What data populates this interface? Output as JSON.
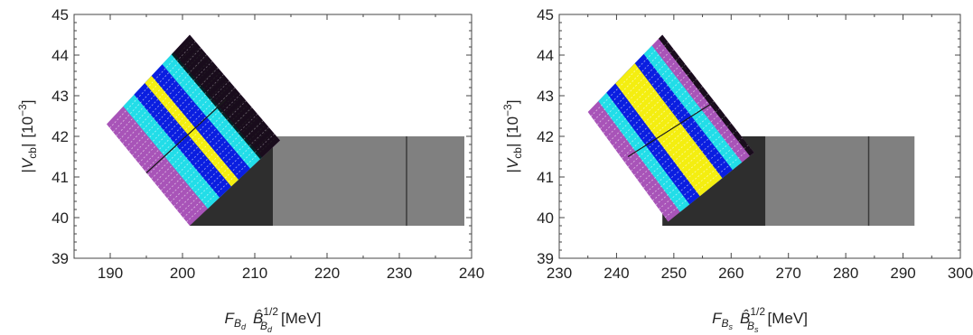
{
  "chart_data": [
    {
      "type": "scatter",
      "panel": "left",
      "title": "",
      "xlabel": {
        "main": "F",
        "sub1": "B",
        "sub2": "d",
        "hat": "B̂",
        "hsub1": "B",
        "hsub2": "d",
        "power": "1/2",
        "unit": "[MeV]"
      },
      "ylabel": {
        "bar_open": "|",
        "main": "V",
        "sub": "cb",
        "bar_close": "|",
        "unit": "[10",
        "unit_exp": "−3",
        "unit_close": "]"
      },
      "xlim": [
        185,
        240
      ],
      "ylim": [
        39,
        45
      ],
      "xticks": [
        "190",
        "200",
        "210",
        "220",
        "230",
        "240"
      ],
      "yticks": [
        "39",
        "40",
        "41",
        "42",
        "43",
        "44",
        "45"
      ],
      "grid": false,
      "legend": "none",
      "colors": {
        "outer": "#a854b8",
        "band2": "#22dde8",
        "band1": "#0a1ee0",
        "core": "#f4ee10",
        "edge": "#000000",
        "dark_box": "#2e2e2e",
        "light_box": "#808080",
        "divider": "#3a3a3a"
      },
      "boxes": [
        {
          "name": "dark-region",
          "x": [
            201,
            212.5
          ],
          "y": [
            39.8,
            42
          ]
        },
        {
          "name": "light-region",
          "x": [
            212.5,
            239
          ],
          "y": [
            39.8,
            42
          ]
        }
      ],
      "divider_x": 231,
      "rotated_band": {
        "corners": [
          [
            189.5,
            42.3
          ],
          [
            201,
            44.5
          ],
          [
            213.5,
            41.9
          ],
          [
            201,
            39.8
          ]
        ],
        "center_line": [
          [
            195,
            41.1
          ],
          [
            206,
            42.9
          ]
        ],
        "width_fraction": {
          "core": 0.08,
          "band1": 0.34,
          "band2": 0.6,
          "outer": 1.0
        },
        "dark_edge_fraction": 0.22
      }
    },
    {
      "type": "scatter",
      "panel": "right",
      "title": "",
      "xlabel": {
        "main": "F",
        "sub1": "B",
        "sub2": "s",
        "hat": "B̂",
        "hsub1": "B",
        "hsub2": "s",
        "power": "1/2",
        "unit": "[MeV]"
      },
      "ylabel": {
        "bar_open": "|",
        "main": "V",
        "sub": "cb",
        "bar_close": "|",
        "unit": "[10",
        "unit_exp": "−3",
        "unit_close": "]"
      },
      "xlim": [
        230,
        300
      ],
      "ylim": [
        39,
        45
      ],
      "xticks": [
        "230",
        "240",
        "250",
        "260",
        "270",
        "280",
        "290",
        "300"
      ],
      "yticks": [
        "39",
        "40",
        "41",
        "42",
        "43",
        "44",
        "45"
      ],
      "grid": false,
      "legend": "none",
      "colors": {
        "outer": "#a854b8",
        "band2": "#22dde8",
        "band1": "#0a1ee0",
        "core": "#f4ee10",
        "edge": "#000000",
        "dark_box": "#2e2e2e",
        "light_box": "#808080",
        "divider": "#3a3a3a"
      },
      "boxes": [
        {
          "name": "dark-region",
          "x": [
            248,
            266
          ],
          "y": [
            39.8,
            42
          ]
        },
        {
          "name": "light-region",
          "x": [
            266,
            292
          ],
          "y": [
            39.8,
            42
          ]
        }
      ],
      "divider_x": 284,
      "rotated_band": {
        "corners": [
          [
            235,
            42.6
          ],
          [
            248,
            44.5
          ],
          [
            264,
            41.6
          ],
          [
            249,
            39.9
          ]
        ],
        "center_line": [
          [
            242,
            41.5
          ],
          [
            256.5,
            42.8
          ]
        ],
        "width_fraction": {
          "core": 0.26,
          "band1": 0.5,
          "band2": 0.72,
          "outer": 1.0
        },
        "dark_edge_fraction": 0.05
      }
    }
  ]
}
